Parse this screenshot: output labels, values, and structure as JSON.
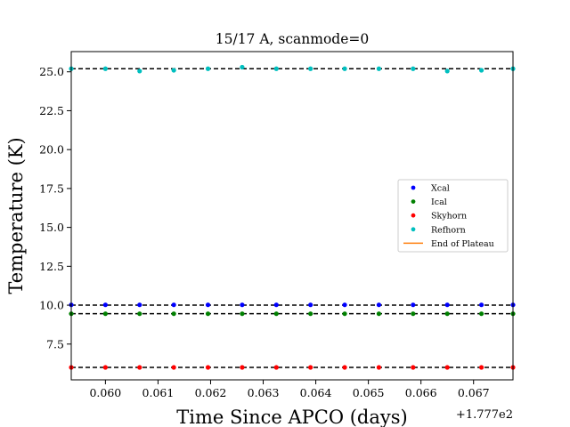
{
  "chart_data": {
    "type": "scatter",
    "title": "15/17 A, scanmode=0",
    "xlabel": "Time Since APCO (days)",
    "ylabel": "Temperature (K)",
    "x_offset_label": "+1.777e2",
    "xlim": [
      0.05935,
      0.06775
    ],
    "ylim": [
      5.2,
      26.3
    ],
    "x_ticks": [
      "0.060",
      "0.061",
      "0.062",
      "0.063",
      "0.064",
      "0.065",
      "0.066",
      "0.067"
    ],
    "y_ticks": [
      "7.5",
      "10.0",
      "12.5",
      "15.0",
      "17.5",
      "20.0",
      "22.5",
      "25.0"
    ],
    "x": [
      0.05935,
      0.06,
      0.06065,
      0.0613,
      0.06195,
      0.0626,
      0.06325,
      0.0639,
      0.06455,
      0.0652,
      0.06585,
      0.0665,
      0.06715,
      0.06775
    ],
    "series": [
      {
        "name": "Xcal",
        "color": "#0000ff",
        "plateau": 10.0,
        "values": [
          10.02,
          10.02,
          10.02,
          10.02,
          10.02,
          10.02,
          10.02,
          10.02,
          10.02,
          10.02,
          10.02,
          10.02,
          10.02,
          10.02
        ]
      },
      {
        "name": "Ical",
        "color": "#008000",
        "plateau": 9.45,
        "values": [
          9.45,
          9.45,
          9.45,
          9.45,
          9.45,
          9.45,
          9.45,
          9.45,
          9.45,
          9.45,
          9.45,
          9.45,
          9.45,
          9.45
        ]
      },
      {
        "name": "Skyhorn",
        "color": "#ff0000",
        "plateau": 6.0,
        "values": [
          6.0,
          6.0,
          6.0,
          6.0,
          6.0,
          6.0,
          6.0,
          6.0,
          6.0,
          6.0,
          6.0,
          6.0,
          6.0,
          6.0
        ]
      },
      {
        "name": "Refhorn",
        "color": "#00bfbf",
        "plateau": 25.2,
        "values": [
          25.2,
          25.2,
          25.05,
          25.1,
          25.2,
          25.3,
          25.2,
          25.2,
          25.2,
          25.2,
          25.2,
          25.05,
          25.1,
          25.2
        ]
      }
    ],
    "line_series": {
      "name": "End of Plateau",
      "color": "#ff7f0e"
    },
    "legend_position": "center-right",
    "grid": false
  }
}
